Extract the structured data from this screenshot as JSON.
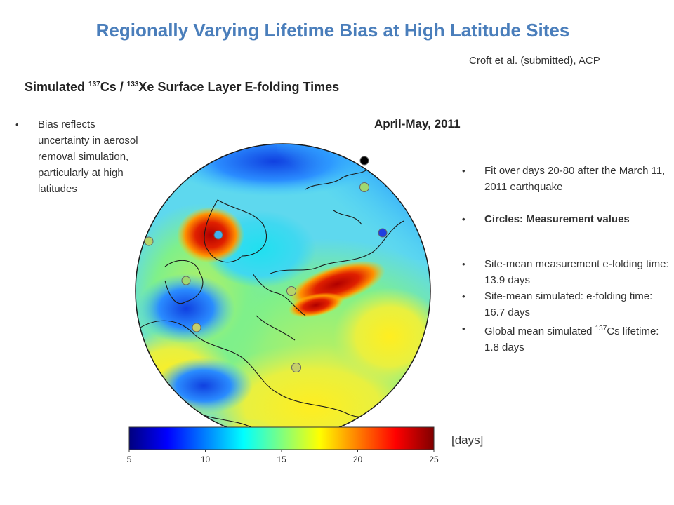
{
  "slide": {
    "title": "Regionally Varying Lifetime Bias at High Latitude Sites",
    "citation": "Croft et al. (submitted), ACP",
    "subtitle": {
      "prefix": "Simulated ",
      "sup1": "137",
      "mid1": "Cs / ",
      "sup2": "133",
      "mid2": "Xe Surface Layer E-folding Times"
    },
    "period": "April-May, 2011"
  },
  "left_bullets": [
    {
      "text": "Bias reflects uncertainty in aerosol removal simulation, particularly at high latitudes"
    }
  ],
  "right_bullets": [
    {
      "text": "Fit over days 20-80 after the March 11, 2011 earthquake"
    },
    {
      "text": "Circles: Measurement values",
      "bold": true
    },
    {
      "text": "Site-mean measurement e-folding time: 13.9 days"
    },
    {
      "text": "Site-mean simulated: e-folding time: 16.7 days"
    },
    {
      "pre": "Global mean simulated ",
      "sup": "137",
      "post": "Cs lifetime: 1.8 days"
    }
  ],
  "colorbar": {
    "min": 5,
    "max": 25,
    "ticks": [
      "5",
      "10",
      "15",
      "20",
      "25"
    ],
    "units": "[days]",
    "colors": [
      "#00007f",
      "#0000ff",
      "#007fff",
      "#00ffff",
      "#7fff7f",
      "#ffff00",
      "#ff7f00",
      "#ff0000",
      "#7f0000"
    ]
  },
  "sites": [
    {
      "value": 5,
      "color": "#000000"
    },
    {
      "value": 8,
      "color": "#1f3fe0"
    },
    {
      "value": 12,
      "color": "#3fb0f0"
    },
    {
      "value": 14,
      "color": "#9fd870"
    },
    {
      "value": 15,
      "color": "#b6d46a"
    },
    {
      "value": 15,
      "color": "#b6d46a"
    },
    {
      "value": 16,
      "color": "#c6d06a"
    },
    {
      "value": 16,
      "color": "#c6d06a"
    },
    {
      "value": 14,
      "color": "#9fd870"
    }
  ]
}
